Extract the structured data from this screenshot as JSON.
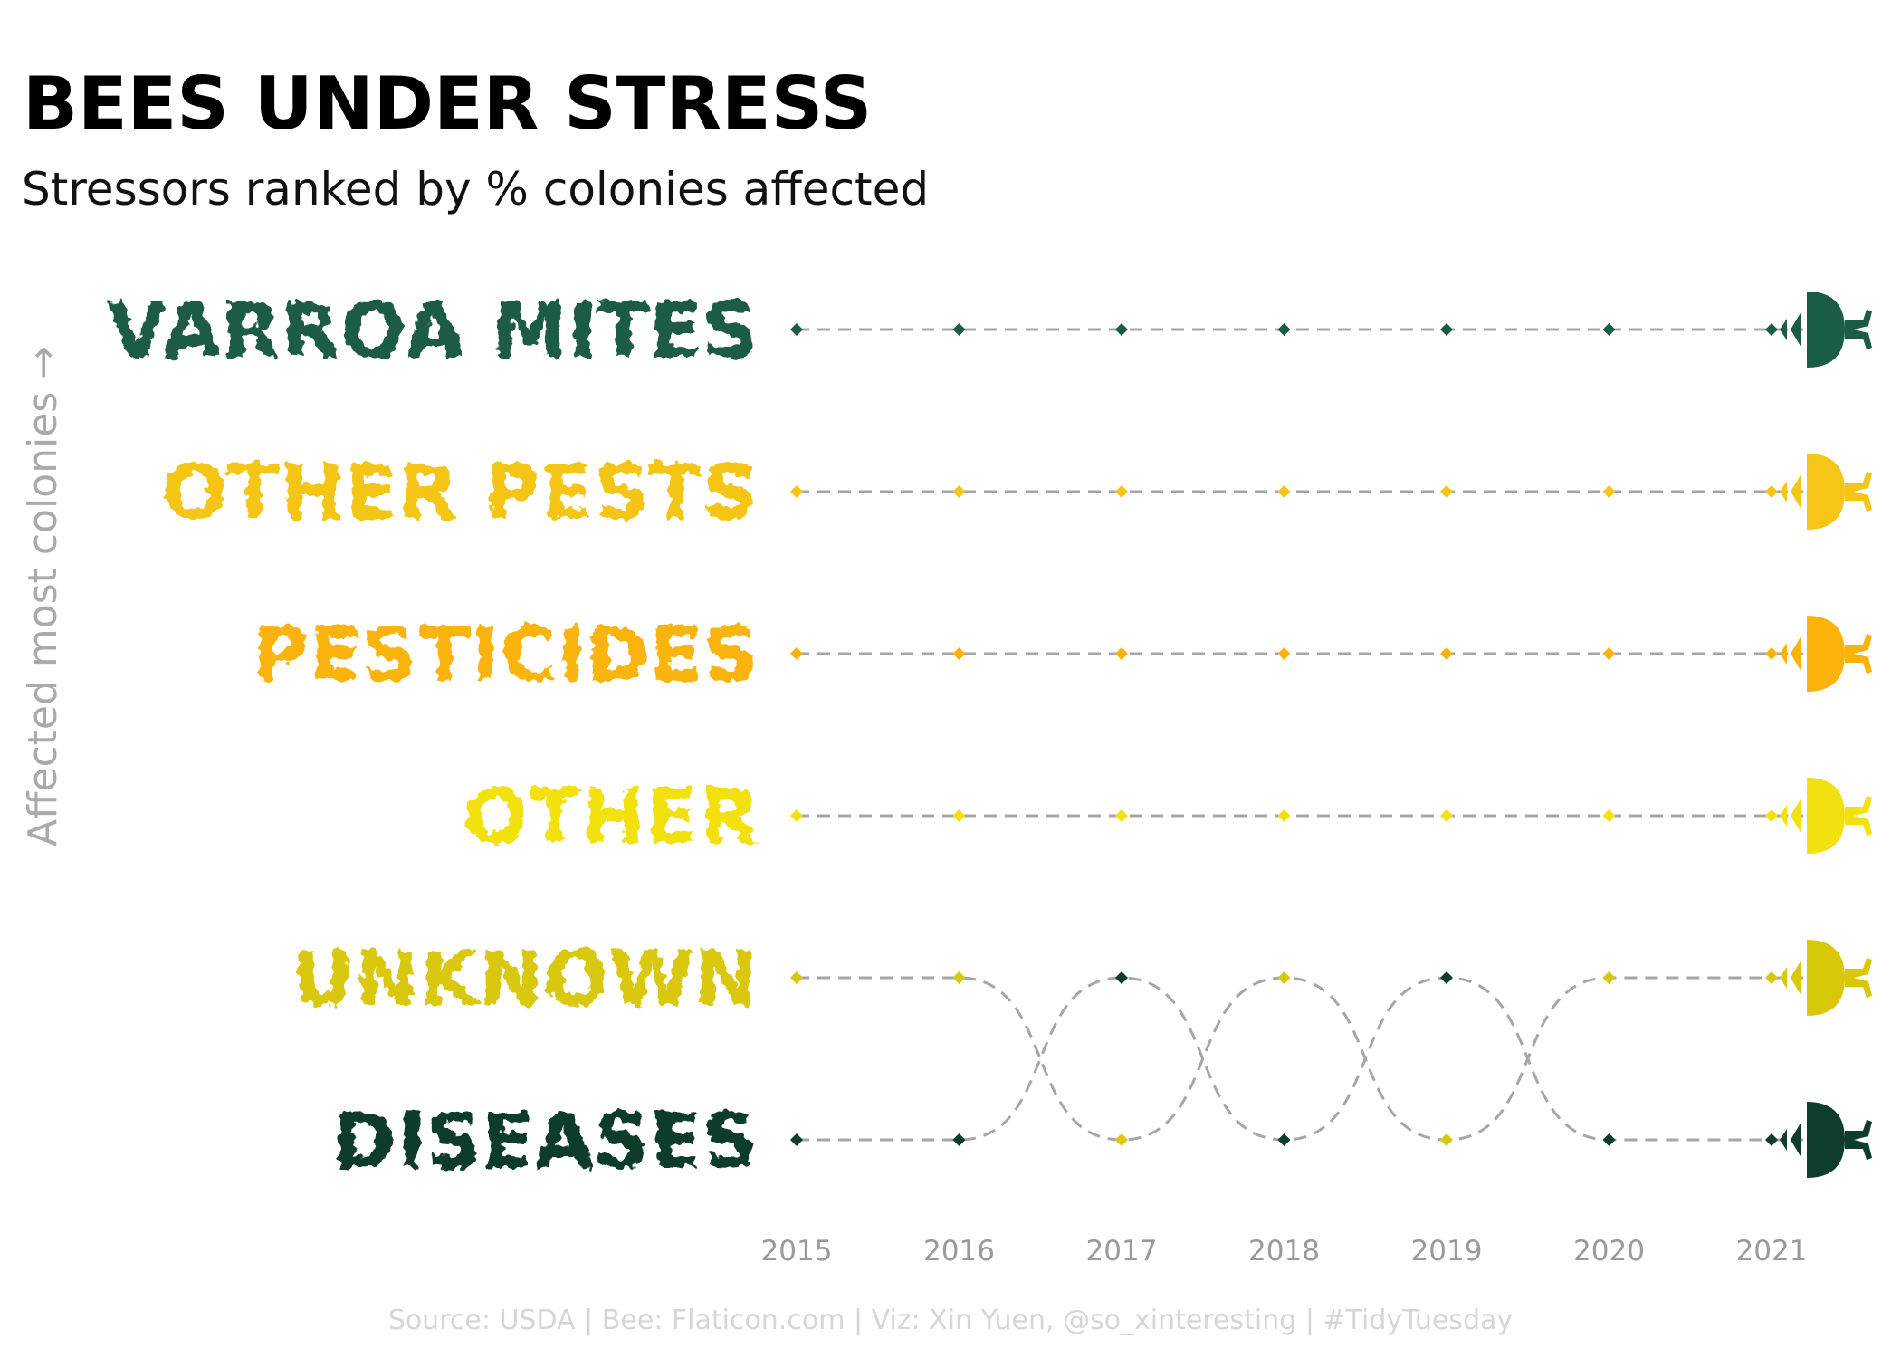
{
  "chart_data": {
    "type": "line",
    "title": "BEES UNDER STRESS",
    "subtitle": "Stressors ranked by % colonies affected",
    "ylabel": "Affected most colonies →",
    "x": [
      "2015",
      "2016",
      "2017",
      "2018",
      "2019",
      "2020",
      "2021"
    ],
    "rank_positions": [
      1,
      2,
      3,
      4,
      5,
      6
    ],
    "grid": false,
    "legend": "none",
    "series": [
      {
        "name": "VARROA MITES",
        "color": "#1a5c45",
        "ranks": [
          1,
          1,
          1,
          1,
          1,
          1,
          1
        ]
      },
      {
        "name": "OTHER PESTS",
        "color": "#f5c518",
        "ranks": [
          2,
          2,
          2,
          2,
          2,
          2,
          2
        ]
      },
      {
        "name": "PESTICIDES",
        "color": "#fbb30a",
        "ranks": [
          3,
          3,
          3,
          3,
          3,
          3,
          3
        ]
      },
      {
        "name": "OTHER",
        "color": "#f2e10f",
        "ranks": [
          4,
          4,
          4,
          4,
          4,
          4,
          4
        ]
      },
      {
        "name": "UNKNOWN",
        "color": "#d9c80a",
        "ranks": [
          5,
          5,
          6,
          5,
          6,
          5,
          5
        ]
      },
      {
        "name": "DISEASES",
        "color": "#0f3d2c",
        "ranks": [
          6,
          6,
          5,
          6,
          5,
          6,
          6
        ]
      }
    ],
    "line_color": "#a6a6a6",
    "end_icon": "bee-icon"
  },
  "caption": "Source: USDA  |  Bee: Flaticon.com  |  Viz: Xin Yuen, @so_xinteresting  |  #TidyTuesday"
}
